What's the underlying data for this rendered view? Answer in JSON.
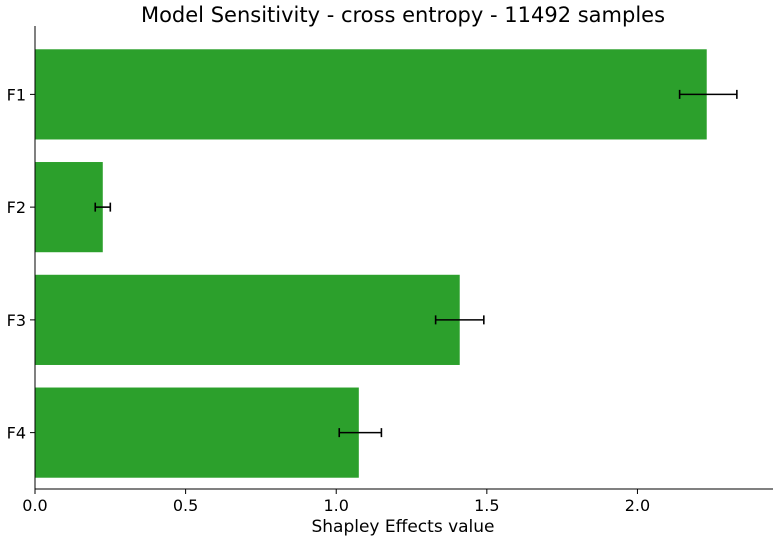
{
  "chart_data": {
    "type": "bar",
    "orientation": "horizontal",
    "title": "Model Sensitivity - cross entropy - 11492 samples",
    "xlabel": "Shapley Effects value",
    "ylabel": "",
    "categories": [
      "F1",
      "F2",
      "F3",
      "F4"
    ],
    "values": [
      2.23,
      0.225,
      1.41,
      1.075
    ],
    "error_low": [
      2.14,
      0.2,
      1.33,
      1.01
    ],
    "error_high": [
      2.33,
      0.25,
      1.49,
      1.15
    ],
    "xlim": [
      0,
      2.45
    ],
    "xticks": [
      0.0,
      0.5,
      1.0,
      1.5,
      2.0
    ],
    "xtick_labels": [
      "0.0",
      "0.5",
      "1.0",
      "1.5",
      "2.0"
    ],
    "grid": false,
    "bar_color": "#2ca02c",
    "error_color": "#000000"
  }
}
